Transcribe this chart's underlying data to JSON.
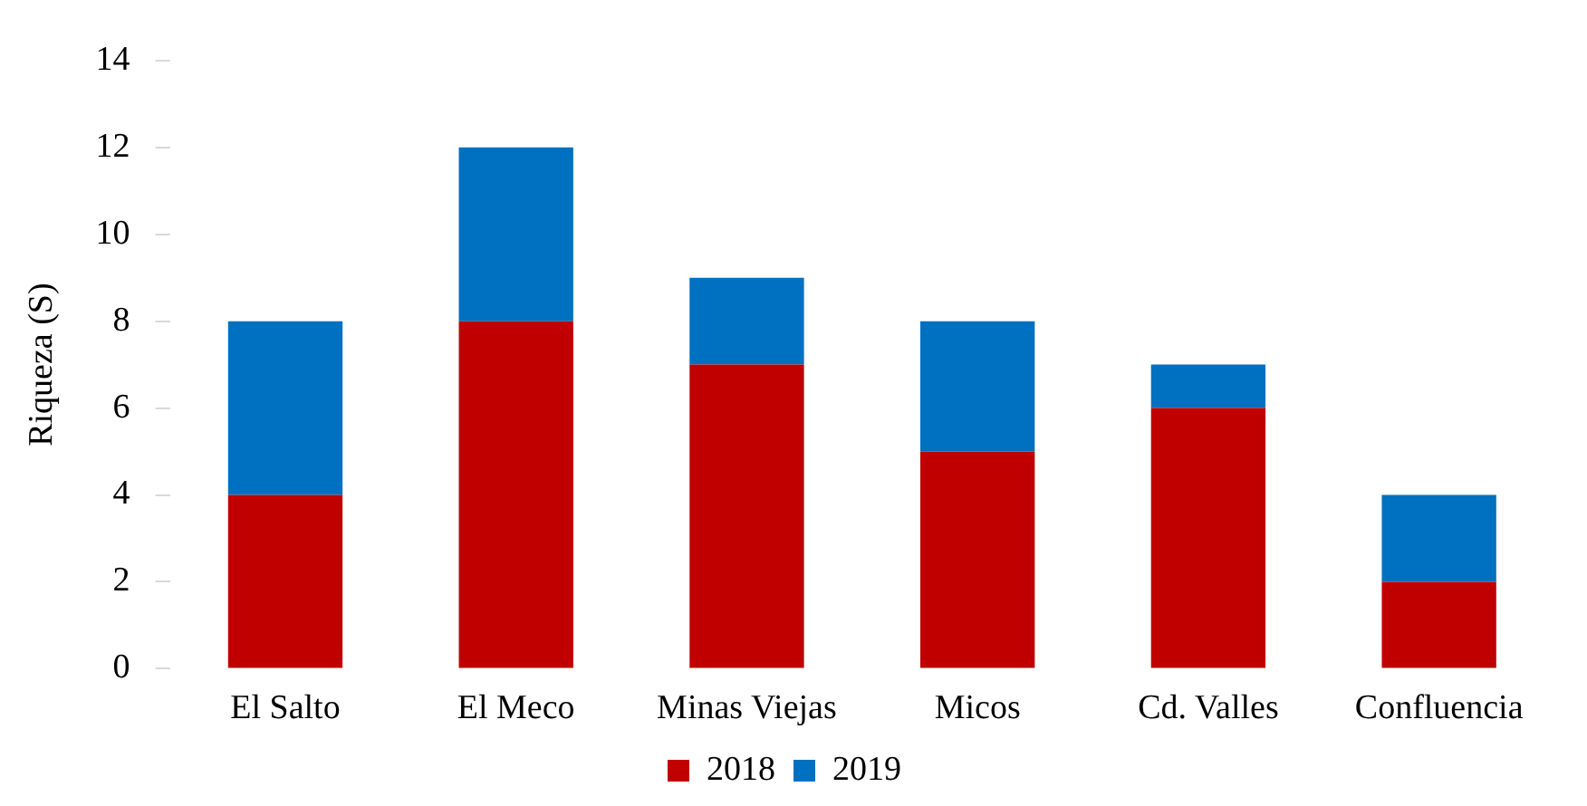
{
  "chart_data": {
    "type": "bar",
    "ylabel": "Riqueza (S)",
    "categories": [
      "El Salto",
      "El Meco",
      "Minas Viejas",
      "Micos",
      "Cd. Valles",
      "Confluencia"
    ],
    "series": [
      {
        "name": "2018",
        "color": "#c00000",
        "values": [
          4,
          8,
          7,
          5,
          6,
          2
        ]
      },
      {
        "name": "2019",
        "color": "#0070c0",
        "values": [
          4,
          4,
          2,
          3,
          1,
          2
        ]
      }
    ],
    "stacked": true,
    "ylim": [
      0,
      14
    ],
    "yticks": [
      0,
      2,
      4,
      6,
      8,
      10,
      12,
      14
    ],
    "grid": false,
    "legend": "bottom"
  }
}
